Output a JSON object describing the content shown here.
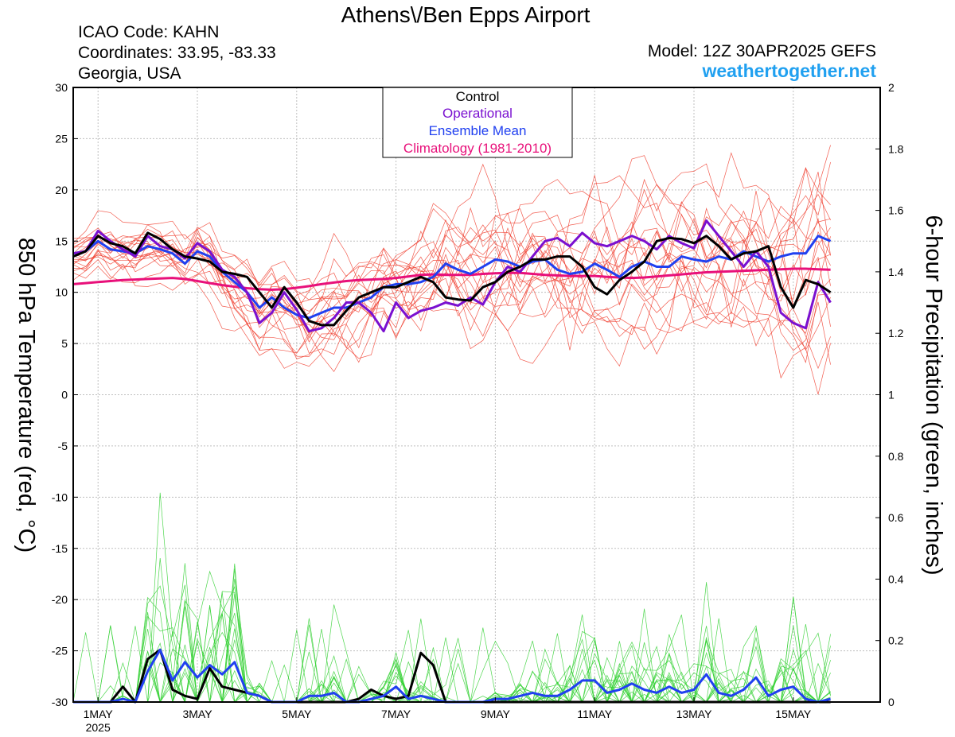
{
  "title": "Athens\\/Ben Epps Airport",
  "info_left": [
    "ICAO Code: KAHN",
    "Coordinates: 33.95, -83.33",
    "Georgia, USA"
  ],
  "model": "Model: 12Z 30APR2025 GEFS",
  "site": "weathertogether.net",
  "colors": {
    "control": "#000000",
    "operational": "#7a10d0",
    "ensemble_mean": "#2040f0",
    "climatology": "#e8107a",
    "members_temp": "#f04030",
    "members_precip": "#30d030",
    "site": "#20a0f0"
  },
  "chart_data": {
    "type": "line",
    "xlabel": "",
    "ylabel": "850 hPa Temperature (red, °C)",
    "y2label": "6-hour Precipitation (green, inches)",
    "xlim": [
      0.5,
      16.75
    ],
    "ylim": [
      -30,
      30
    ],
    "y2lim": [
      0,
      2
    ],
    "grid": true,
    "x_ticks": [
      {
        "x": 1,
        "label": "1MAY",
        "sub": "2025"
      },
      {
        "x": 3,
        "label": "3MAY",
        "sub": ""
      },
      {
        "x": 5,
        "label": "5MAY",
        "sub": ""
      },
      {
        "x": 7,
        "label": "7MAY",
        "sub": ""
      },
      {
        "x": 9,
        "label": "9MAY",
        "sub": ""
      },
      {
        "x": 11,
        "label": "11MAY",
        "sub": ""
      },
      {
        "x": 13,
        "label": "13MAY",
        "sub": ""
      },
      {
        "x": 15,
        "label": "15MAY",
        "sub": ""
      }
    ],
    "y_ticks": [
      "30",
      "25",
      "20",
      "15",
      "10",
      "5",
      "0",
      "-5",
      "-10",
      "-15",
      "-20",
      "-25",
      "-30"
    ],
    "y2_ticks": [
      "2",
      "1.8",
      "1.6",
      "1.4",
      "1.2",
      "1",
      "0.8",
      "0.6",
      "0.4",
      "0.2",
      "0"
    ],
    "legend": {
      "position": "top-center",
      "entries": [
        "Control",
        "Operational",
        "Ensemble Mean",
        "Climatology (1981-2010)"
      ]
    },
    "x_start": 0.5,
    "x_step": 0.25,
    "temp_series": [
      {
        "name": "Control",
        "values": [
          13.5,
          14.0,
          15.5,
          14.8,
          14.5,
          13.8,
          15.8,
          15.2,
          14.2,
          13.5,
          13.3,
          13.0,
          12.0,
          11.8,
          11.5,
          10.0,
          8.5,
          10.5,
          9.0,
          7.2,
          6.8,
          6.8,
          8.2,
          9.5,
          10.0,
          10.5,
          10.5,
          11.0,
          11.5,
          11.0,
          9.5,
          9.3,
          9.2,
          10.5,
          11.0,
          12.0,
          12.5,
          13.2,
          13.2,
          13.5,
          13.5,
          12.5,
          10.5,
          9.8,
          11.2,
          12.0,
          13.0,
          15.0,
          15.3,
          15.2,
          14.8,
          15.5,
          14.5,
          13.2,
          13.8,
          14.0,
          14.5,
          10.5,
          8.5,
          11.2,
          10.8,
          10.0
        ]
      },
      {
        "name": "Operational",
        "values": [
          13.8,
          14.0,
          16.0,
          15.0,
          14.2,
          13.5,
          15.5,
          14.5,
          14.2,
          13.3,
          14.8,
          14.0,
          12.2,
          11.5,
          10.0,
          7.0,
          8.0,
          10.0,
          8.3,
          6.2,
          6.5,
          7.5,
          9.0,
          9.0,
          8.0,
          6.2,
          9.0,
          7.5,
          8.2,
          8.5,
          9.0,
          8.7,
          9.5,
          8.8,
          11.0,
          12.5,
          12.0,
          13.5,
          15.0,
          15.3,
          14.5,
          15.8,
          14.8,
          14.5,
          15.0,
          15.5,
          15.0,
          14.2,
          15.5,
          14.8,
          14.3,
          17.0,
          15.5,
          14.0,
          12.5,
          14.0,
          12.5,
          8.0,
          7.0,
          6.5,
          11.0,
          9.0
        ]
      },
      {
        "name": "Ensemble Mean",
        "values": [
          13.8,
          14.0,
          15.0,
          14.2,
          14.0,
          13.8,
          14.5,
          14.2,
          13.8,
          12.8,
          14.0,
          13.5,
          12.0,
          11.0,
          10.0,
          8.5,
          9.5,
          8.5,
          7.8,
          7.5,
          8.0,
          8.5,
          8.5,
          9.0,
          9.5,
          10.5,
          10.8,
          10.8,
          11.0,
          11.5,
          12.8,
          12.2,
          11.8,
          12.5,
          13.2,
          13.0,
          12.5,
          13.0,
          13.2,
          12.2,
          11.8,
          12.0,
          12.8,
          12.2,
          11.5,
          12.5,
          13.0,
          12.5,
          12.5,
          13.5,
          13.2,
          13.0,
          13.5,
          13.2,
          14.0,
          13.5,
          13.0,
          13.5,
          13.8,
          13.8,
          15.5,
          15.0
        ]
      },
      {
        "name": "Climatology (1981-2010)",
        "values": [
          10.8,
          10.9,
          11.0,
          11.1,
          11.2,
          11.25,
          11.3,
          11.35,
          11.4,
          11.3,
          11.1,
          10.9,
          10.7,
          10.55,
          10.4,
          10.3,
          10.25,
          10.3,
          10.45,
          10.6,
          10.8,
          10.95,
          11.1,
          11.2,
          11.25,
          11.3,
          11.4,
          11.55,
          11.7,
          11.75,
          11.7,
          11.7,
          11.7,
          11.8,
          11.85,
          11.9,
          11.9,
          11.8,
          11.7,
          11.65,
          11.6,
          11.6,
          11.6,
          11.5,
          11.45,
          11.4,
          11.45,
          11.55,
          11.65,
          11.75,
          11.85,
          11.95,
          12.0,
          12.05,
          12.1,
          12.15,
          12.2,
          12.25,
          12.3,
          12.3,
          12.25,
          12.2
        ]
      }
    ],
    "precip_series": [
      {
        "name": "Control",
        "values": [
          0,
          0,
          0,
          0,
          0.05,
          0,
          0.14,
          0.17,
          0.04,
          0.02,
          0.01,
          0.11,
          0.05,
          0.04,
          0.03,
          0.02,
          0,
          0,
          0,
          0,
          0,
          0,
          0,
          0.01,
          0.04,
          0.02,
          0.01,
          0.02,
          0.16,
          0.12,
          0,
          0,
          0,
          0,
          0,
          0,
          0,
          0,
          0,
          0,
          0,
          0,
          0,
          0,
          0,
          0,
          0,
          0,
          0,
          0,
          0,
          0,
          0,
          0,
          0,
          0,
          0,
          0,
          0,
          0,
          0,
          0
        ]
      },
      {
        "name": "Ensemble Mean",
        "values": [
          0,
          0,
          0,
          0,
          0.01,
          0,
          0.1,
          0.17,
          0.07,
          0.13,
          0.08,
          0.12,
          0.09,
          0.13,
          0.03,
          0.02,
          0,
          0,
          0,
          0.02,
          0.02,
          0.03,
          0,
          0,
          0.01,
          0.02,
          0.05,
          0.01,
          0.02,
          0.01,
          0,
          0,
          0,
          0,
          0.01,
          0.01,
          0.02,
          0.03,
          0.02,
          0.02,
          0.04,
          0.07,
          0.07,
          0.03,
          0.04,
          0.06,
          0.04,
          0.03,
          0.05,
          0.03,
          0.04,
          0.09,
          0.03,
          0.02,
          0.04,
          0.08,
          0.02,
          0.04,
          0.05,
          0.01,
          0,
          0.01
        ]
      }
    ]
  }
}
